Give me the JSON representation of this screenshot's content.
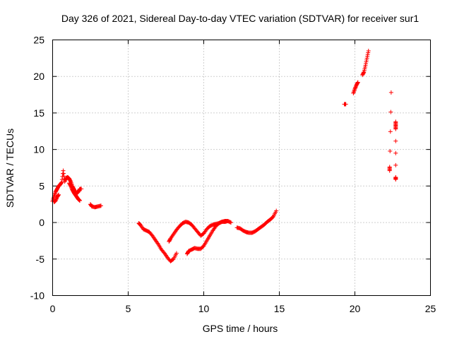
{
  "chart_data": {
    "type": "scatter",
    "title": "Day 326 of 2021, Sidereal Day-to-day VTEC variation (SDTVAR) for receiver sur1",
    "xlabel": "GPS time / hours",
    "ylabel": "SDTVAR / TECUs",
    "xlim": [
      0,
      25
    ],
    "ylim": [
      -10,
      25
    ],
    "xticks": [
      "0",
      "5",
      "10",
      "15",
      "20",
      "25"
    ],
    "yticks": [
      "-10",
      "-5",
      "0",
      "5",
      "10",
      "15",
      "20",
      "25"
    ],
    "grid": true,
    "marker": "+",
    "color": "#ff0000",
    "series": [
      {
        "name": "SDTVAR",
        "segments": [
          [
            [
              0.0,
              2.9
            ],
            [
              0.1,
              3.6
            ],
            [
              0.2,
              4.2
            ],
            [
              0.3,
              4.6
            ],
            [
              0.4,
              5.0
            ],
            [
              0.5,
              5.2
            ],
            [
              0.6,
              5.5
            ],
            [
              0.7,
              7.1
            ],
            [
              0.8,
              5.6
            ],
            [
              0.9,
              6.1
            ],
            [
              1.0,
              6.2
            ],
            [
              1.1,
              6.0
            ],
            [
              1.2,
              5.6
            ],
            [
              1.3,
              5.0
            ],
            [
              1.4,
              4.6
            ],
            [
              1.5,
              4.2
            ],
            [
              1.6,
              4.0
            ],
            [
              1.7,
              4.2
            ],
            [
              1.8,
              4.6
            ],
            [
              1.9,
              4.6
            ]
          ],
          [
            [
              0.1,
              2.8
            ],
            [
              0.2,
              3.0
            ],
            [
              0.3,
              3.5
            ],
            [
              0.4,
              3.8
            ]
          ],
          [
            [
              1.1,
              5.4
            ],
            [
              1.2,
              5.0
            ],
            [
              1.3,
              4.5
            ],
            [
              1.4,
              4.1
            ],
            [
              1.5,
              3.8
            ],
            [
              1.6,
              3.5
            ],
            [
              1.7,
              3.2
            ],
            [
              1.8,
              3.0
            ]
          ],
          [
            [
              2.5,
              2.5
            ],
            [
              2.6,
              2.2
            ],
            [
              2.8,
              2.1
            ],
            [
              3.0,
              2.2
            ],
            [
              3.2,
              2.3
            ]
          ],
          [
            [
              5.7,
              -0.1
            ],
            [
              5.8,
              -0.3
            ],
            [
              6.0,
              -0.9
            ],
            [
              6.2,
              -1.1
            ],
            [
              6.4,
              -1.3
            ],
            [
              6.6,
              -1.8
            ],
            [
              6.8,
              -2.4
            ],
            [
              7.0,
              -3.0
            ],
            [
              7.2,
              -3.7
            ],
            [
              7.4,
              -4.2
            ],
            [
              7.6,
              -4.8
            ],
            [
              7.8,
              -5.3
            ],
            [
              8.0,
              -5.0
            ],
            [
              8.2,
              -4.2
            ]
          ],
          [
            [
              7.7,
              -2.6
            ],
            [
              7.8,
              -2.2
            ],
            [
              8.0,
              -1.6
            ],
            [
              8.2,
              -1.0
            ],
            [
              8.4,
              -0.5
            ],
            [
              8.6,
              -0.1
            ],
            [
              8.8,
              0.1
            ],
            [
              9.0,
              0.0
            ],
            [
              9.2,
              -0.3
            ],
            [
              9.4,
              -0.8
            ],
            [
              9.6,
              -1.3
            ],
            [
              9.8,
              -1.8
            ],
            [
              10.0,
              -1.5
            ],
            [
              10.2,
              -0.9
            ],
            [
              10.4,
              -0.5
            ],
            [
              10.6,
              -0.3
            ],
            [
              10.8,
              -0.2
            ],
            [
              11.0,
              -0.1
            ],
            [
              11.2,
              0.1
            ],
            [
              11.4,
              0.2
            ],
            [
              11.6,
              0.2
            ]
          ],
          [
            [
              8.9,
              -4.3
            ],
            [
              9.0,
              -3.9
            ],
            [
              9.2,
              -3.7
            ],
            [
              9.4,
              -3.5
            ],
            [
              9.6,
              -3.6
            ],
            [
              9.8,
              -3.6
            ],
            [
              10.0,
              -3.2
            ],
            [
              10.2,
              -2.5
            ],
            [
              10.4,
              -1.8
            ],
            [
              10.6,
              -1.1
            ],
            [
              10.8,
              -0.5
            ],
            [
              11.0,
              -0.1
            ],
            [
              11.2,
              0.1
            ],
            [
              11.4,
              0.1
            ],
            [
              11.6,
              0.2
            ],
            [
              11.8,
              0.0
            ]
          ],
          [
            [
              12.2,
              -0.7
            ],
            [
              12.4,
              -0.8
            ],
            [
              12.6,
              -1.1
            ],
            [
              12.8,
              -1.3
            ],
            [
              13.0,
              -1.4
            ],
            [
              13.2,
              -1.4
            ],
            [
              13.4,
              -1.2
            ],
            [
              13.6,
              -0.9
            ],
            [
              13.8,
              -0.6
            ],
            [
              14.0,
              -0.3
            ],
            [
              14.2,
              0.1
            ],
            [
              14.4,
              0.4
            ],
            [
              14.6,
              0.8
            ],
            [
              14.8,
              1.6
            ]
          ],
          [
            [
              19.3,
              16.2
            ],
            [
              19.4,
              16.2
            ]
          ],
          [
            [
              19.9,
              17.7
            ],
            [
              20.0,
              18.3
            ],
            [
              20.1,
              18.8
            ],
            [
              20.2,
              19.2
            ]
          ],
          [
            [
              20.5,
              20.2
            ],
            [
              20.6,
              20.6
            ],
            [
              20.7,
              21.5
            ],
            [
              20.8,
              22.5
            ],
            [
              20.9,
              23.5
            ]
          ],
          [
            [
              22.3,
              7.6
            ],
            [
              22.3,
              7.1
            ],
            [
              22.4,
              17.8
            ]
          ],
          [
            [
              22.7,
              13.8
            ],
            [
              22.7,
              13.3
            ],
            [
              22.7,
              12.8
            ],
            [
              22.7,
              6.2
            ],
            [
              22.7,
              5.9
            ]
          ]
        ]
      }
    ]
  }
}
